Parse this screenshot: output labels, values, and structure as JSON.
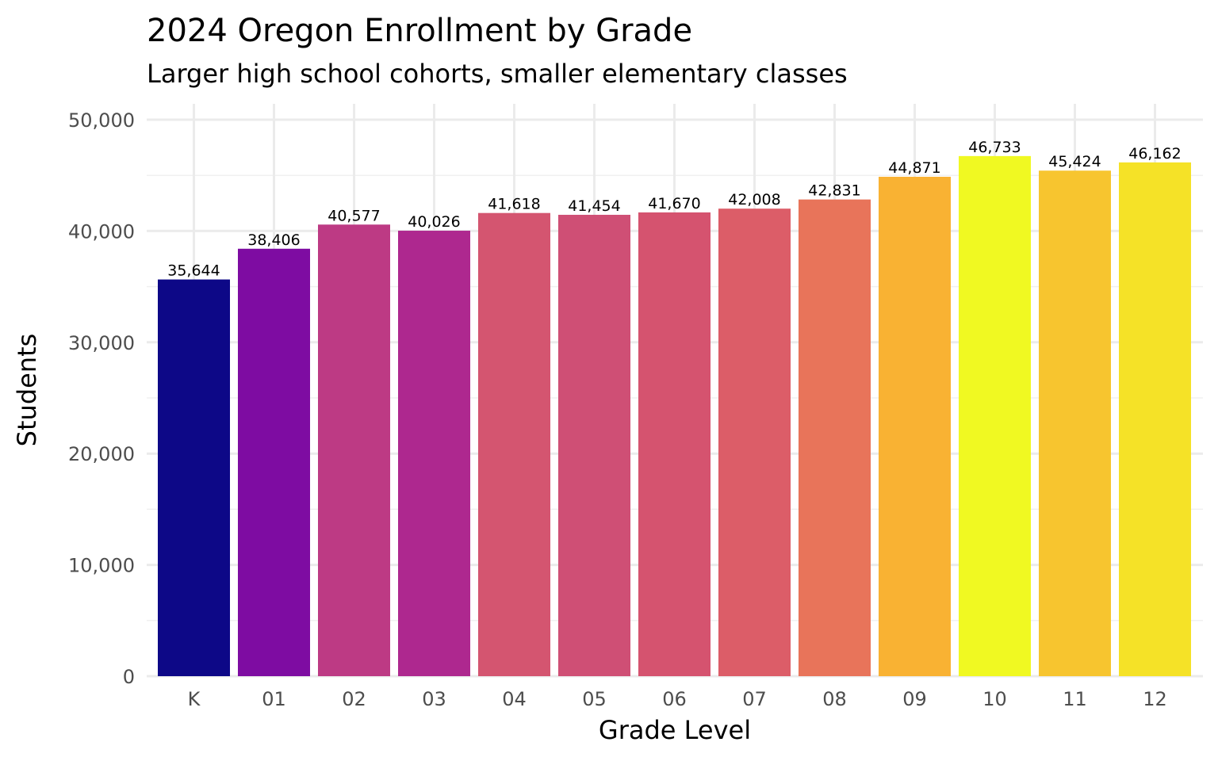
{
  "chart_data": {
    "type": "bar",
    "title": "2024 Oregon Enrollment by Grade",
    "subtitle": "Larger high school cohorts, smaller elementary classes",
    "xlabel": "Grade Level",
    "ylabel": "Students",
    "categories": [
      "K",
      "01",
      "02",
      "03",
      "04",
      "05",
      "06",
      "07",
      "08",
      "09",
      "10",
      "11",
      "12"
    ],
    "values": [
      35644,
      38406,
      40577,
      40026,
      41618,
      41454,
      41670,
      42008,
      42831,
      44871,
      46733,
      45424,
      46162
    ],
    "value_labels": [
      "35,644",
      "38,406",
      "40,577",
      "40,026",
      "41,618",
      "41,454",
      "41,670",
      "42,008",
      "42,831",
      "44,871",
      "46,733",
      "45,424",
      "46,162"
    ],
    "colors": [
      "#0d0887",
      "#7e0ca2",
      "#bd3a84",
      "#ae288f",
      "#d45570",
      "#cf4f75",
      "#d5536f",
      "#dc5d68",
      "#e8745a",
      "#f9b233",
      "#f0f922",
      "#f7c52f",
      "#f5e227"
    ],
    "ylim": [
      0,
      50000
    ],
    "yticks": [
      0,
      10000,
      20000,
      30000,
      40000,
      50000
    ],
    "ytick_labels": [
      "0",
      "10,000",
      "20,000",
      "30,000",
      "40,000",
      "50,000"
    ],
    "grid": true,
    "legend": "none"
  }
}
